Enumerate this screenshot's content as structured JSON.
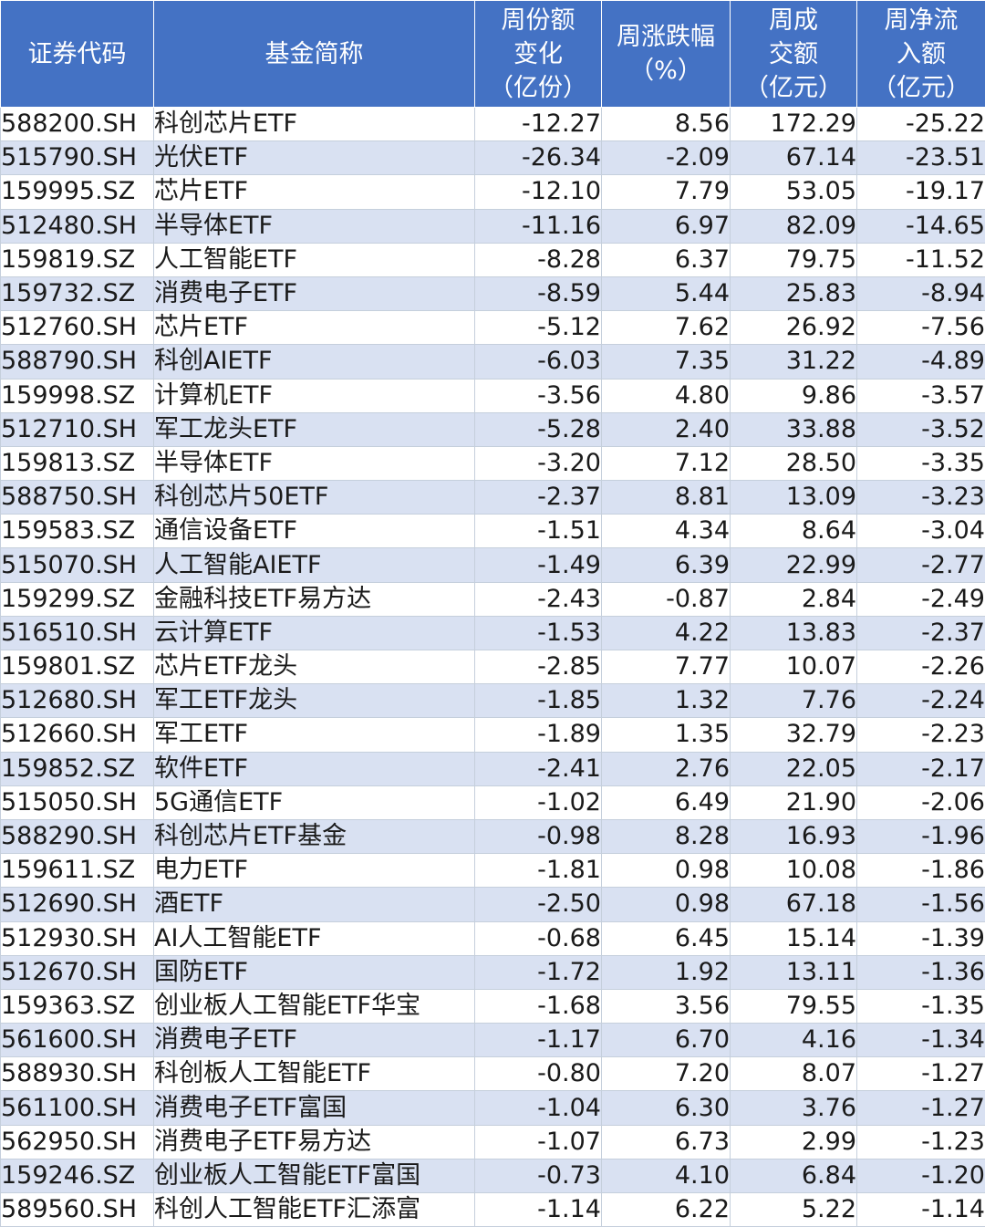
{
  "table": {
    "headers": [
      [
        "证券代码"
      ],
      [
        "基金简称"
      ],
      [
        "周份额",
        "变化",
        "（亿份）"
      ],
      [
        "周涨跌幅",
        "（%）"
      ],
      [
        "周成",
        "交额",
        "（亿元）"
      ],
      [
        "周净流",
        "入额",
        "（亿元）"
      ]
    ],
    "rows": [
      [
        "588200.SH",
        "科创芯片ETF",
        "-12.27",
        "8.56",
        "172.29",
        "-25.22"
      ],
      [
        "515790.SH",
        "光伏ETF",
        "-26.34",
        "-2.09",
        "67.14",
        "-23.51"
      ],
      [
        "159995.SZ",
        "芯片ETF",
        "-12.10",
        "7.79",
        "53.05",
        "-19.17"
      ],
      [
        "512480.SH",
        "半导体ETF",
        "-11.16",
        "6.97",
        "82.09",
        "-14.65"
      ],
      [
        "159819.SZ",
        "人工智能ETF",
        "-8.28",
        "6.37",
        "79.75",
        "-11.52"
      ],
      [
        "159732.SZ",
        "消费电子ETF",
        "-8.59",
        "5.44",
        "25.83",
        "-8.94"
      ],
      [
        "512760.SH",
        "芯片ETF",
        "-5.12",
        "7.62",
        "26.92",
        "-7.56"
      ],
      [
        "588790.SH",
        "科创AIETF",
        "-6.03",
        "7.35",
        "31.22",
        "-4.89"
      ],
      [
        "159998.SZ",
        "计算机ETF",
        "-3.56",
        "4.80",
        "9.86",
        "-3.57"
      ],
      [
        "512710.SH",
        "军工龙头ETF",
        "-5.28",
        "2.40",
        "33.88",
        "-3.52"
      ],
      [
        "159813.SZ",
        "半导体ETF",
        "-3.20",
        "7.12",
        "28.50",
        "-3.35"
      ],
      [
        "588750.SH",
        "科创芯片50ETF",
        "-2.37",
        "8.81",
        "13.09",
        "-3.23"
      ],
      [
        "159583.SZ",
        "通信设备ETF",
        "-1.51",
        "4.34",
        "8.64",
        "-3.04"
      ],
      [
        "515070.SH",
        "人工智能AIETF",
        "-1.49",
        "6.39",
        "22.99",
        "-2.77"
      ],
      [
        "159299.SZ",
        "金融科技ETF易方达",
        "-2.43",
        "-0.87",
        "2.84",
        "-2.49"
      ],
      [
        "516510.SH",
        "云计算ETF",
        "-1.53",
        "4.22",
        "13.83",
        "-2.37"
      ],
      [
        "159801.SZ",
        "芯片ETF龙头",
        "-2.85",
        "7.77",
        "10.07",
        "-2.26"
      ],
      [
        "512680.SH",
        "军工ETF龙头",
        "-1.85",
        "1.32",
        "7.76",
        "-2.24"
      ],
      [
        "512660.SH",
        "军工ETF",
        "-1.89",
        "1.35",
        "32.79",
        "-2.23"
      ],
      [
        "159852.SZ",
        "软件ETF",
        "-2.41",
        "2.76",
        "22.05",
        "-2.17"
      ],
      [
        "515050.SH",
        "5G通信ETF",
        "-1.02",
        "6.49",
        "21.90",
        "-2.06"
      ],
      [
        "588290.SH",
        "科创芯片ETF基金",
        "-0.98",
        "8.28",
        "16.93",
        "-1.96"
      ],
      [
        "159611.SZ",
        "电力ETF",
        "-1.81",
        "0.98",
        "10.08",
        "-1.86"
      ],
      [
        "512690.SH",
        "酒ETF",
        "-2.50",
        "0.98",
        "67.18",
        "-1.56"
      ],
      [
        "512930.SH",
        "AI人工智能ETF",
        "-0.68",
        "6.45",
        "15.14",
        "-1.39"
      ],
      [
        "512670.SH",
        "国防ETF",
        "-1.72",
        "1.92",
        "13.11",
        "-1.36"
      ],
      [
        "159363.SZ",
        "创业板人工智能ETF华宝",
        "-1.68",
        "3.56",
        "79.55",
        "-1.35"
      ],
      [
        "561600.SH",
        "消费电子ETF",
        "-1.17",
        "6.70",
        "4.16",
        "-1.34"
      ],
      [
        "588930.SH",
        "科创板人工智能ETF",
        "-0.80",
        "7.20",
        "8.07",
        "-1.27"
      ],
      [
        "561100.SH",
        "消费电子ETF富国",
        "-1.04",
        "6.30",
        "3.76",
        "-1.27"
      ],
      [
        "562950.SH",
        "消费电子ETF易方达",
        "-1.07",
        "6.73",
        "2.99",
        "-1.23"
      ],
      [
        "159246.SZ",
        "创业板人工智能ETF富国",
        "-0.73",
        "4.10",
        "6.84",
        "-1.20"
      ],
      [
        "589560.SH",
        "科创人工智能ETF汇添富",
        "-1.14",
        "6.22",
        "5.22",
        "-1.14"
      ]
    ]
  },
  "colors": {
    "header_bg": "#4472c4",
    "header_text": "#ffffff",
    "stripe_bg": "#d9e1f2",
    "row_bg": "#ffffff",
    "text": "#1a1a1a"
  }
}
